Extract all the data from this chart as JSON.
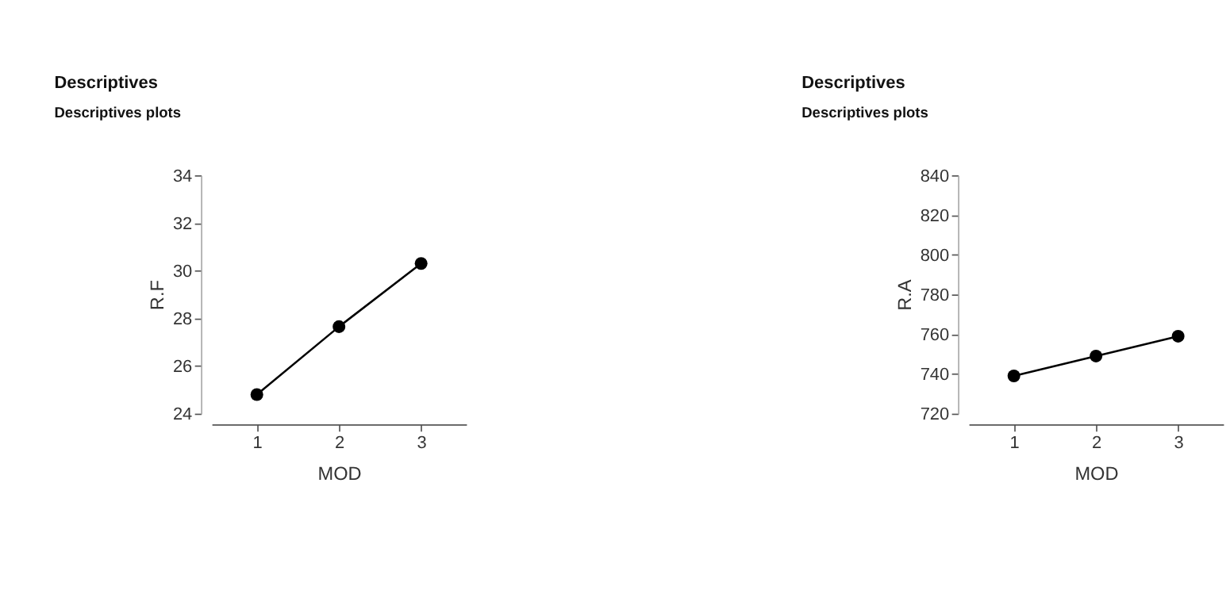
{
  "chart_data": [
    {
      "type": "line",
      "title": "Descriptives",
      "subtitle": "Descriptives plots",
      "xlabel": "MOD",
      "ylabel": "R.F",
      "categories": [
        "1",
        "2",
        "3"
      ],
      "series": [
        {
          "color": "#000000",
          "values": [
            24.8,
            27.65,
            30.3
          ]
        }
      ],
      "ylim": [
        24,
        34
      ],
      "yticks": [
        24,
        26,
        28,
        30,
        32,
        34
      ],
      "grid": false,
      "legend": false,
      "marker": "circle",
      "line_style": "solid"
    },
    {
      "type": "line",
      "title": "Descriptives",
      "subtitle": "Descriptives plots",
      "xlabel": "MOD",
      "ylabel": "R.A",
      "categories": [
        "1",
        "2",
        "3"
      ],
      "series": [
        {
          "color": "#000000",
          "values": [
            739,
            749,
            759
          ]
        }
      ],
      "ylim": [
        720,
        840
      ],
      "yticks": [
        720,
        740,
        760,
        780,
        800,
        820,
        840
      ],
      "grid": false,
      "legend": false,
      "marker": "circle",
      "line_style": "solid"
    }
  ]
}
